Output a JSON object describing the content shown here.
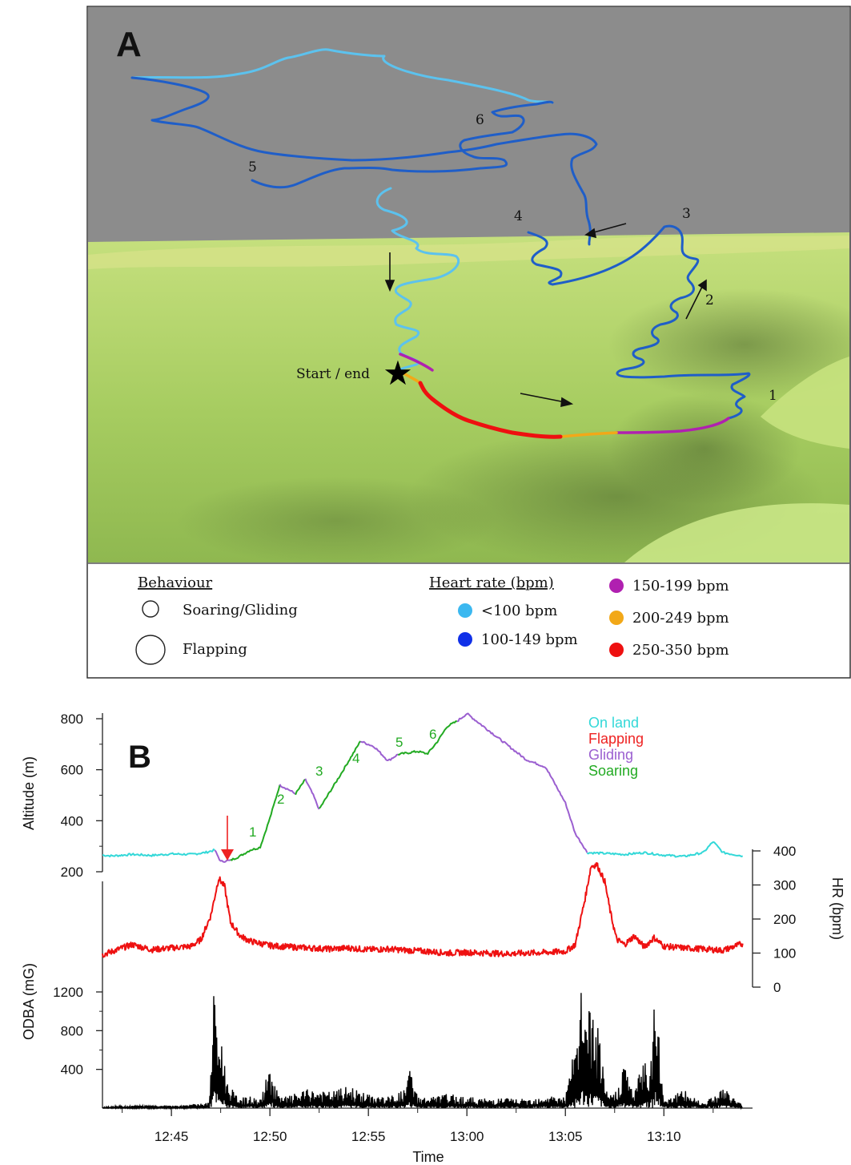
{
  "panel_a": {
    "label": "A",
    "behaviour_title": "Behaviour",
    "behaviour_items": [
      "Soaring/Gliding",
      "Flapping"
    ],
    "hr_title": "Heart rate (bpm)",
    "hr_items": [
      {
        "label": "<100 bpm",
        "color": "#3bb8f0"
      },
      {
        "label": "100-149 bpm",
        "color": "#1030e8"
      },
      {
        "label": "150-199 bpm",
        "color": "#b020b0"
      },
      {
        "label": "200-249 bpm",
        "color": "#f2a818"
      },
      {
        "label": "250-350 bpm",
        "color": "#ee1010"
      }
    ],
    "start_label": "Start / end",
    "track_labels": [
      "1",
      "2",
      "3",
      "4",
      "5",
      "6"
    ],
    "colors": {
      "sky": "#8c8c8c",
      "terrain": "#b5d66e",
      "track_light": "#5cc2ee",
      "track_dark": "#1f5ec8"
    }
  },
  "panel_b": {
    "label": "B",
    "legend": [
      {
        "label": "On land",
        "color": "#33d8d8"
      },
      {
        "label": "Flapping",
        "color": "#ee2222"
      },
      {
        "label": "Gliding",
        "color": "#9b5fd0"
      },
      {
        "label": "Soaring",
        "color": "#22aa22"
      }
    ],
    "climb_labels": [
      "1",
      "2",
      "3",
      "4",
      "5",
      "6"
    ],
    "arrow_color": "#ee2222"
  },
  "chart_data": [
    {
      "type": "line",
      "ylabel": "Altitude (m)",
      "xlabel": "",
      "ylim": [
        200,
        820
      ],
      "yticks": [
        200,
        400,
        600,
        800
      ],
      "x_unit": "minutes after 12:45",
      "series": [
        {
          "name": "On land",
          "color": "#33d8d8",
          "x": [
            -3.5,
            -3,
            -2,
            -1,
            0,
            1,
            1.7,
            2.2
          ],
          "y": [
            265,
            262,
            268,
            264,
            270,
            268,
            275,
            285
          ]
        },
        {
          "name": "Gliding",
          "color": "#9b5fd0",
          "x": [
            2.2,
            2.5,
            3
          ],
          "y": [
            285,
            240,
            245
          ]
        },
        {
          "name": "Soaring",
          "color": "#22aa22",
          "x": [
            3,
            3.5,
            4,
            4.5
          ],
          "y": [
            245,
            262,
            285,
            295
          ]
        },
        {
          "name": "Soaring",
          "color": "#22aa22",
          "x": [
            4.5,
            5,
            5.5
          ],
          "y": [
            295,
            410,
            540
          ]
        },
        {
          "name": "Gliding",
          "color": "#9b5fd0",
          "x": [
            5.5,
            6,
            6.3
          ],
          "y": [
            540,
            520,
            505
          ]
        },
        {
          "name": "Soaring",
          "color": "#22aa22",
          "x": [
            6.3,
            6.8
          ],
          "y": [
            505,
            562
          ]
        },
        {
          "name": "Gliding",
          "color": "#9b5fd0",
          "x": [
            6.8,
            7.2,
            7.5
          ],
          "y": [
            562,
            500,
            445
          ]
        },
        {
          "name": "Soaring",
          "color": "#22aa22",
          "x": [
            7.5,
            8.5,
            9.6
          ],
          "y": [
            445,
            570,
            712
          ]
        },
        {
          "name": "Gliding",
          "color": "#9b5fd0",
          "x": [
            9.6,
            10.3,
            11,
            11.5
          ],
          "y": [
            712,
            690,
            635,
            660
          ]
        },
        {
          "name": "Soaring",
          "color": "#22aa22",
          "x": [
            11.5,
            12.5,
            13
          ],
          "y": [
            660,
            672,
            662
          ]
        },
        {
          "name": "Soaring",
          "color": "#22aa22",
          "x": [
            13,
            13.5,
            14,
            14.5
          ],
          "y": [
            662,
            710,
            770,
            790
          ]
        },
        {
          "name": "Gliding",
          "color": "#9b5fd0",
          "x": [
            14.5,
            15,
            16,
            17,
            18,
            19,
            20,
            20.5,
            21,
            21.1
          ],
          "y": [
            790,
            820,
            760,
            700,
            640,
            610,
            470,
            350,
            290,
            275
          ]
        },
        {
          "name": "On land",
          "color": "#33d8d8",
          "x": [
            21.1,
            22,
            23,
            24,
            25,
            26,
            27,
            27.5,
            28,
            29
          ],
          "y": [
            275,
            272,
            268,
            275,
            265,
            260,
            275,
            318,
            275,
            262
          ]
        }
      ]
    },
    {
      "type": "line",
      "ylabel": "HR (bpm)",
      "ylim": [
        0,
        400
      ],
      "yticks": [
        0,
        100,
        200,
        300,
        400
      ],
      "x_unit": "minutes after 12:45",
      "series": [
        {
          "name": "",
          "color": "#ee1111",
          "x": [
            -3.5,
            -3,
            -2.5,
            -2,
            -1,
            0,
            1,
            1.5,
            2,
            2.4,
            2.7,
            3,
            3.5,
            4,
            5,
            6,
            7,
            8,
            9,
            10,
            11,
            12,
            13,
            14,
            15,
            16,
            17,
            18,
            19,
            20,
            20.5,
            21,
            21.3,
            21.6,
            22,
            22.3,
            22.6,
            23,
            23.5,
            24,
            24.5,
            25,
            26,
            27,
            28,
            29
          ],
          "y": [
            95,
            105,
            115,
            125,
            110,
            115,
            120,
            140,
            210,
            320,
            295,
            190,
            150,
            135,
            122,
            118,
            115,
            112,
            115,
            110,
            112,
            108,
            105,
            100,
            102,
            100,
            98,
            100,
            102,
            105,
            125,
            260,
            355,
            360,
            310,
            215,
            140,
            125,
            150,
            118,
            145,
            120,
            115,
            112,
            108,
            128
          ]
        }
      ]
    },
    {
      "type": "line",
      "ylabel": "ODBA (mG)",
      "xlabel": "Time",
      "ylim": [
        0,
        1450
      ],
      "yticks": [
        400,
        800,
        1200
      ],
      "x_ticks": [
        "12:45",
        "12:50",
        "12:55",
        "13:00",
        "13:05",
        "13:10"
      ],
      "x_tick_minutes": [
        0,
        5,
        10,
        15,
        20,
        25
      ],
      "x_range_minutes": [
        -3.5,
        29.5
      ],
      "series": [
        {
          "name": "",
          "color": "#000000",
          "x": [
            -3.5,
            -3,
            -2,
            -1,
            0,
            1,
            1.9,
            2.2,
            2.4,
            2.6,
            2.8,
            3.2,
            3.6,
            4,
            4.5,
            5,
            5.5,
            6,
            7,
            8,
            9,
            10,
            11,
            11.9,
            12,
            12.5,
            13,
            14,
            15,
            16,
            17,
            18,
            19,
            20,
            20.6,
            20.9,
            21.1,
            21.3,
            21.5,
            21.8,
            22,
            22.5,
            23,
            23.5,
            24,
            24.3,
            24.5,
            25,
            25.5,
            26,
            27,
            28,
            29
          ],
          "y": [
            15,
            20,
            25,
            30,
            25,
            40,
            60,
            1400,
            800,
            700,
            320,
            150,
            110,
            120,
            90,
            440,
            110,
            130,
            200,
            170,
            230,
            140,
            120,
            200,
            480,
            130,
            110,
            150,
            120,
            100,
            110,
            90,
            140,
            120,
            800,
            1420,
            1100,
            1050,
            980,
            700,
            180,
            150,
            500,
            150,
            600,
            380,
            1380,
            100,
            150,
            190,
            60,
            220,
            30
          ]
        }
      ]
    }
  ]
}
